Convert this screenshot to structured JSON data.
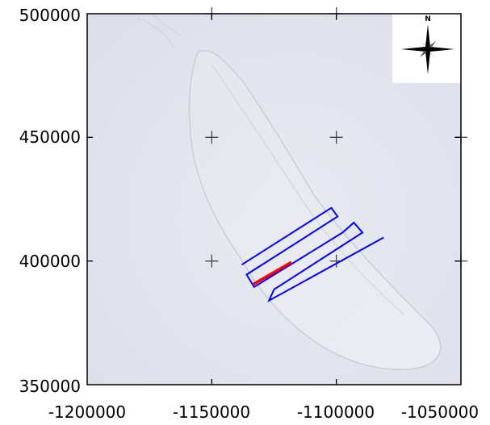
{
  "map": {
    "x_ticks": [
      "-1200000",
      "-1150000",
      "-1100000",
      "-1050000"
    ],
    "y_ticks": [
      "500000",
      "450000",
      "400000",
      "350000"
    ],
    "x_range": [
      -1200000,
      -1050000
    ],
    "y_range": [
      350000,
      500000
    ],
    "grid_crosses": [
      [
        -1150000,
        500000
      ],
      [
        -1100000,
        500000
      ],
      [
        -1150000,
        450000
      ],
      [
        -1100000,
        450000
      ],
      [
        -1050000,
        450000
      ],
      [
        -1150000,
        400000
      ],
      [
        -1100000,
        400000
      ],
      [
        -1050000,
        400000
      ]
    ],
    "north_arrow_label": "N",
    "colors": {
      "survey_lines": "#0000ff",
      "highlight_line": "#ff0000",
      "background": "#e4e6ef",
      "frame": "#000000"
    },
    "survey_path": [
      [
        -1138000,
        398500
      ],
      [
        -1102000,
        421500
      ],
      [
        -1099500,
        418000
      ],
      [
        -1136000,
        394500
      ],
      [
        -1133000,
        389500
      ],
      [
        -1097500,
        411500
      ]
    ],
    "survey_loop2": [
      [
        -1097500,
        411500
      ],
      [
        -1093000,
        415500
      ],
      [
        -1089500,
        411500
      ],
      [
        -1125000,
        388500
      ],
      [
        -1127000,
        384000
      ],
      [
        -1081000,
        409500
      ]
    ],
    "highlight_segment": [
      [
        -1133500,
        390500
      ],
      [
        -1118000,
        399500
      ]
    ]
  }
}
